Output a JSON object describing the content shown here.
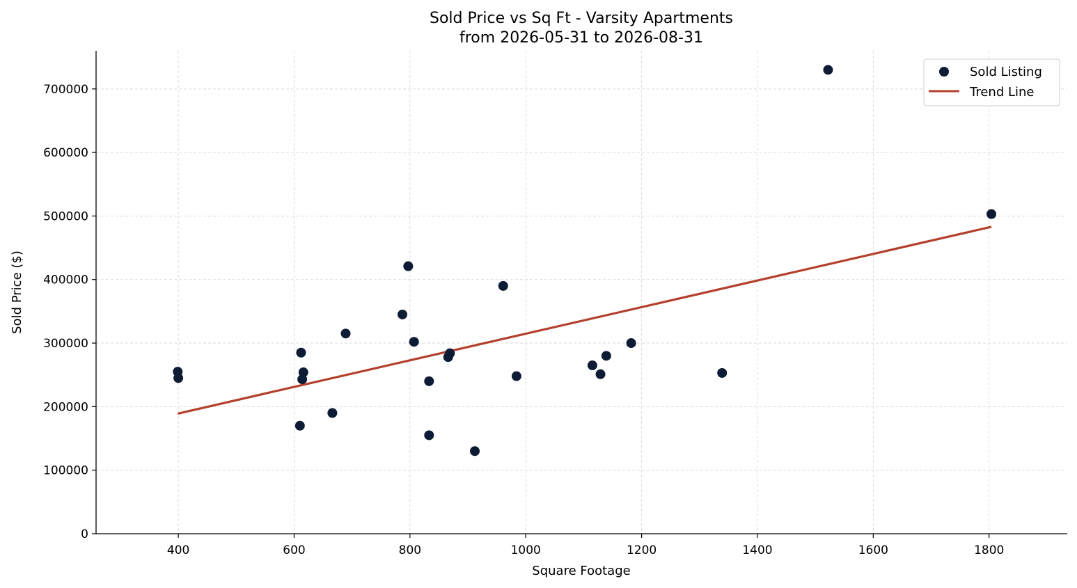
{
  "chart_data": {
    "type": "scatter",
    "title_line1": "Sold Price vs Sq Ft - Varsity Apartments",
    "title_line2": "from 2026-05-31 to 2026-08-31",
    "xlabel": "Square Footage",
    "ylabel": "Sold Price ($)",
    "xlim": [
      258,
      1935
    ],
    "ylim": [
      0,
      760000
    ],
    "xticks": [
      400,
      600,
      800,
      1000,
      1200,
      1400,
      1600,
      1800
    ],
    "xtick_labels": [
      "400",
      "600",
      "800",
      "1000",
      "1200",
      "1400",
      "1600",
      "1800"
    ],
    "yticks": [
      0,
      100000,
      200000,
      300000,
      400000,
      500000,
      600000,
      700000
    ],
    "ytick_labels": [
      "0",
      "100000",
      "200000",
      "300000",
      "400000",
      "500000",
      "600000",
      "700000"
    ],
    "grid": true,
    "legend_position": "top-right",
    "legend": [
      "Sold Listing",
      "Trend Line"
    ],
    "colors": {
      "points": "#0d1b35",
      "trend": "#b5402e",
      "grid": "#cccccc"
    },
    "series": [
      {
        "name": "Sold Listing",
        "kind": "scatter",
        "points": [
          [
            399,
            255000
          ],
          [
            400,
            245000
          ],
          [
            610,
            170000
          ],
          [
            612,
            285000
          ],
          [
            614,
            243000
          ],
          [
            616,
            254000
          ],
          [
            666,
            190000
          ],
          [
            689,
            315000
          ],
          [
            787,
            345000
          ],
          [
            797,
            421000
          ],
          [
            807,
            302000
          ],
          [
            833,
            240000
          ],
          [
            833,
            155000
          ],
          [
            866,
            278000
          ],
          [
            869,
            284000
          ],
          [
            912,
            130000
          ],
          [
            961,
            390000
          ],
          [
            984,
            248000
          ],
          [
            1115,
            265000
          ],
          [
            1129,
            251000
          ],
          [
            1139,
            280000
          ],
          [
            1182,
            300000
          ],
          [
            1339,
            253000
          ],
          [
            1522,
            730000
          ],
          [
            1804,
            503000
          ]
        ]
      },
      {
        "name": "Trend Line",
        "kind": "line",
        "points": [
          [
            399,
            189000
          ],
          [
            1804,
            483000
          ]
        ]
      }
    ]
  }
}
